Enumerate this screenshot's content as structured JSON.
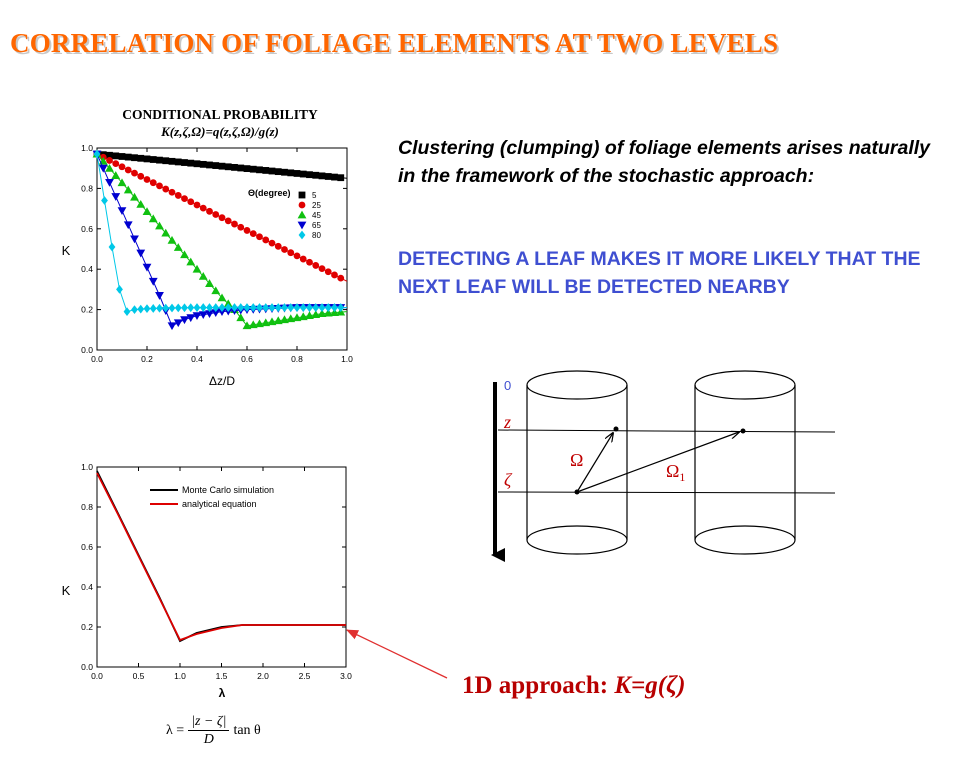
{
  "title": "CORRELATION OF FOLIAGE ELEMENTS AT TWO LEVELS",
  "paragraph": "Clustering (clumping) of foliage elements arises naturally in the framework of the stochastic approach:",
  "emphasis": "DETECTING A LEAF MAKES IT MORE LIKELY THAT THE NEXT LEAF WILL BE DETECTED NEARBY",
  "approach": {
    "prefix": "1D approach: ",
    "formula": "K=g(ζ)"
  },
  "lambda_formula": {
    "lhs": "λ =",
    "numerator": "|z − ζ|",
    "denominator": "D",
    "rhs": "tan θ"
  },
  "diagram": {
    "zero": "0",
    "z": "z",
    "zeta": "ζ",
    "omega": "Ω",
    "omega1": "Ω",
    "omega1_sub": "1"
  },
  "colors": {
    "title": "#ff6600",
    "emphasis": "#3f4fd1",
    "approach": "#b80000",
    "pointer": "#e03030"
  },
  "chart_data": [
    {
      "type": "scatter",
      "title": "CONDITIONAL PROBABILITY",
      "subtitle": "K(z,ζ,Ω)=q(z,ζ,Ω)/g(z)",
      "xlabel": "Δz/D",
      "ylabel": "K",
      "xlim": [
        0,
        1
      ],
      "ylim": [
        0,
        1
      ],
      "xticks": [
        "0.0",
        "0.2",
        "0.4",
        "0.6",
        "0.8",
        "1.0"
      ],
      "yticks": [
        "0.0",
        "0.2",
        "0.4",
        "0.6",
        "0.8",
        "1.0"
      ],
      "legend_title": "Θ(degree)",
      "legend_position": "top-right",
      "grid": false,
      "series": [
        {
          "name": "5",
          "color": "#000000",
          "marker": "square",
          "x": [
            0.0,
            0.1,
            0.2,
            0.3,
            0.4,
            0.5,
            0.6,
            0.7,
            0.8,
            0.9,
            1.0
          ],
          "y": [
            0.97,
            0.958,
            0.946,
            0.934,
            0.922,
            0.91,
            0.898,
            0.886,
            0.874,
            0.862,
            0.85
          ]
        },
        {
          "name": "25",
          "color": "#e00000",
          "marker": "circle",
          "x": [
            0.0,
            0.1,
            0.2,
            0.3,
            0.4,
            0.5,
            0.6,
            0.7,
            0.8,
            0.9,
            1.0
          ],
          "y": [
            0.97,
            0.907,
            0.844,
            0.781,
            0.718,
            0.655,
            0.592,
            0.529,
            0.466,
            0.403,
            0.34
          ]
        },
        {
          "name": "45",
          "color": "#10c010",
          "marker": "triangle-up",
          "x": [
            0.0,
            0.1,
            0.2,
            0.3,
            0.4,
            0.5,
            0.55,
            0.6,
            0.7,
            0.8,
            0.9,
            1.0
          ],
          "y": [
            0.97,
            0.828,
            0.685,
            0.543,
            0.4,
            0.258,
            0.2,
            0.12,
            0.14,
            0.16,
            0.18,
            0.19
          ]
        },
        {
          "name": "65",
          "color": "#0000d0",
          "marker": "triangle-down",
          "x": [
            0.0,
            0.05,
            0.1,
            0.15,
            0.2,
            0.25,
            0.3,
            0.35,
            0.4,
            0.5,
            0.6,
            0.7,
            0.8,
            0.9,
            1.0
          ],
          "y": [
            0.97,
            0.83,
            0.69,
            0.55,
            0.41,
            0.27,
            0.12,
            0.15,
            0.17,
            0.19,
            0.2,
            0.205,
            0.21,
            0.21,
            0.21
          ]
        },
        {
          "name": "80",
          "color": "#00c8e8",
          "marker": "diamond",
          "x": [
            0.0,
            0.03,
            0.06,
            0.09,
            0.12,
            0.15,
            0.2,
            0.3,
            0.4,
            0.5,
            0.6,
            0.7,
            0.8,
            0.9,
            1.0
          ],
          "y": [
            0.97,
            0.74,
            0.51,
            0.3,
            0.19,
            0.2,
            0.205,
            0.208,
            0.21,
            0.21,
            0.21,
            0.21,
            0.21,
            0.21,
            0.21
          ]
        }
      ]
    },
    {
      "type": "line",
      "xlabel": "λ",
      "ylabel": "K",
      "xlim": [
        0,
        3
      ],
      "ylim": [
        0,
        1
      ],
      "xticks": [
        "0.0",
        "0.5",
        "1.0",
        "1.5",
        "2.0",
        "2.5",
        "3.0"
      ],
      "yticks": [
        "0.0",
        "0.2",
        "0.4",
        "0.6",
        "0.8",
        "1.0"
      ],
      "legend_position": "top-right",
      "grid": false,
      "series": [
        {
          "name": "Monte Carlo simulation",
          "color": "#000000",
          "x": [
            0,
            0.25,
            0.5,
            0.75,
            1.0,
            1.2,
            1.5,
            1.75,
            2.0,
            2.5,
            3.0
          ],
          "y": [
            0.98,
            0.77,
            0.56,
            0.35,
            0.13,
            0.17,
            0.2,
            0.21,
            0.21,
            0.21,
            0.21
          ]
        },
        {
          "name": "analytical equation",
          "color": "#dd0000",
          "x": [
            0,
            0.25,
            0.5,
            0.75,
            1.0,
            1.2,
            1.5,
            1.75,
            2.0,
            2.5,
            3.0
          ],
          "y": [
            0.97,
            0.765,
            0.555,
            0.345,
            0.135,
            0.165,
            0.195,
            0.21,
            0.21,
            0.21,
            0.21
          ]
        }
      ]
    }
  ]
}
